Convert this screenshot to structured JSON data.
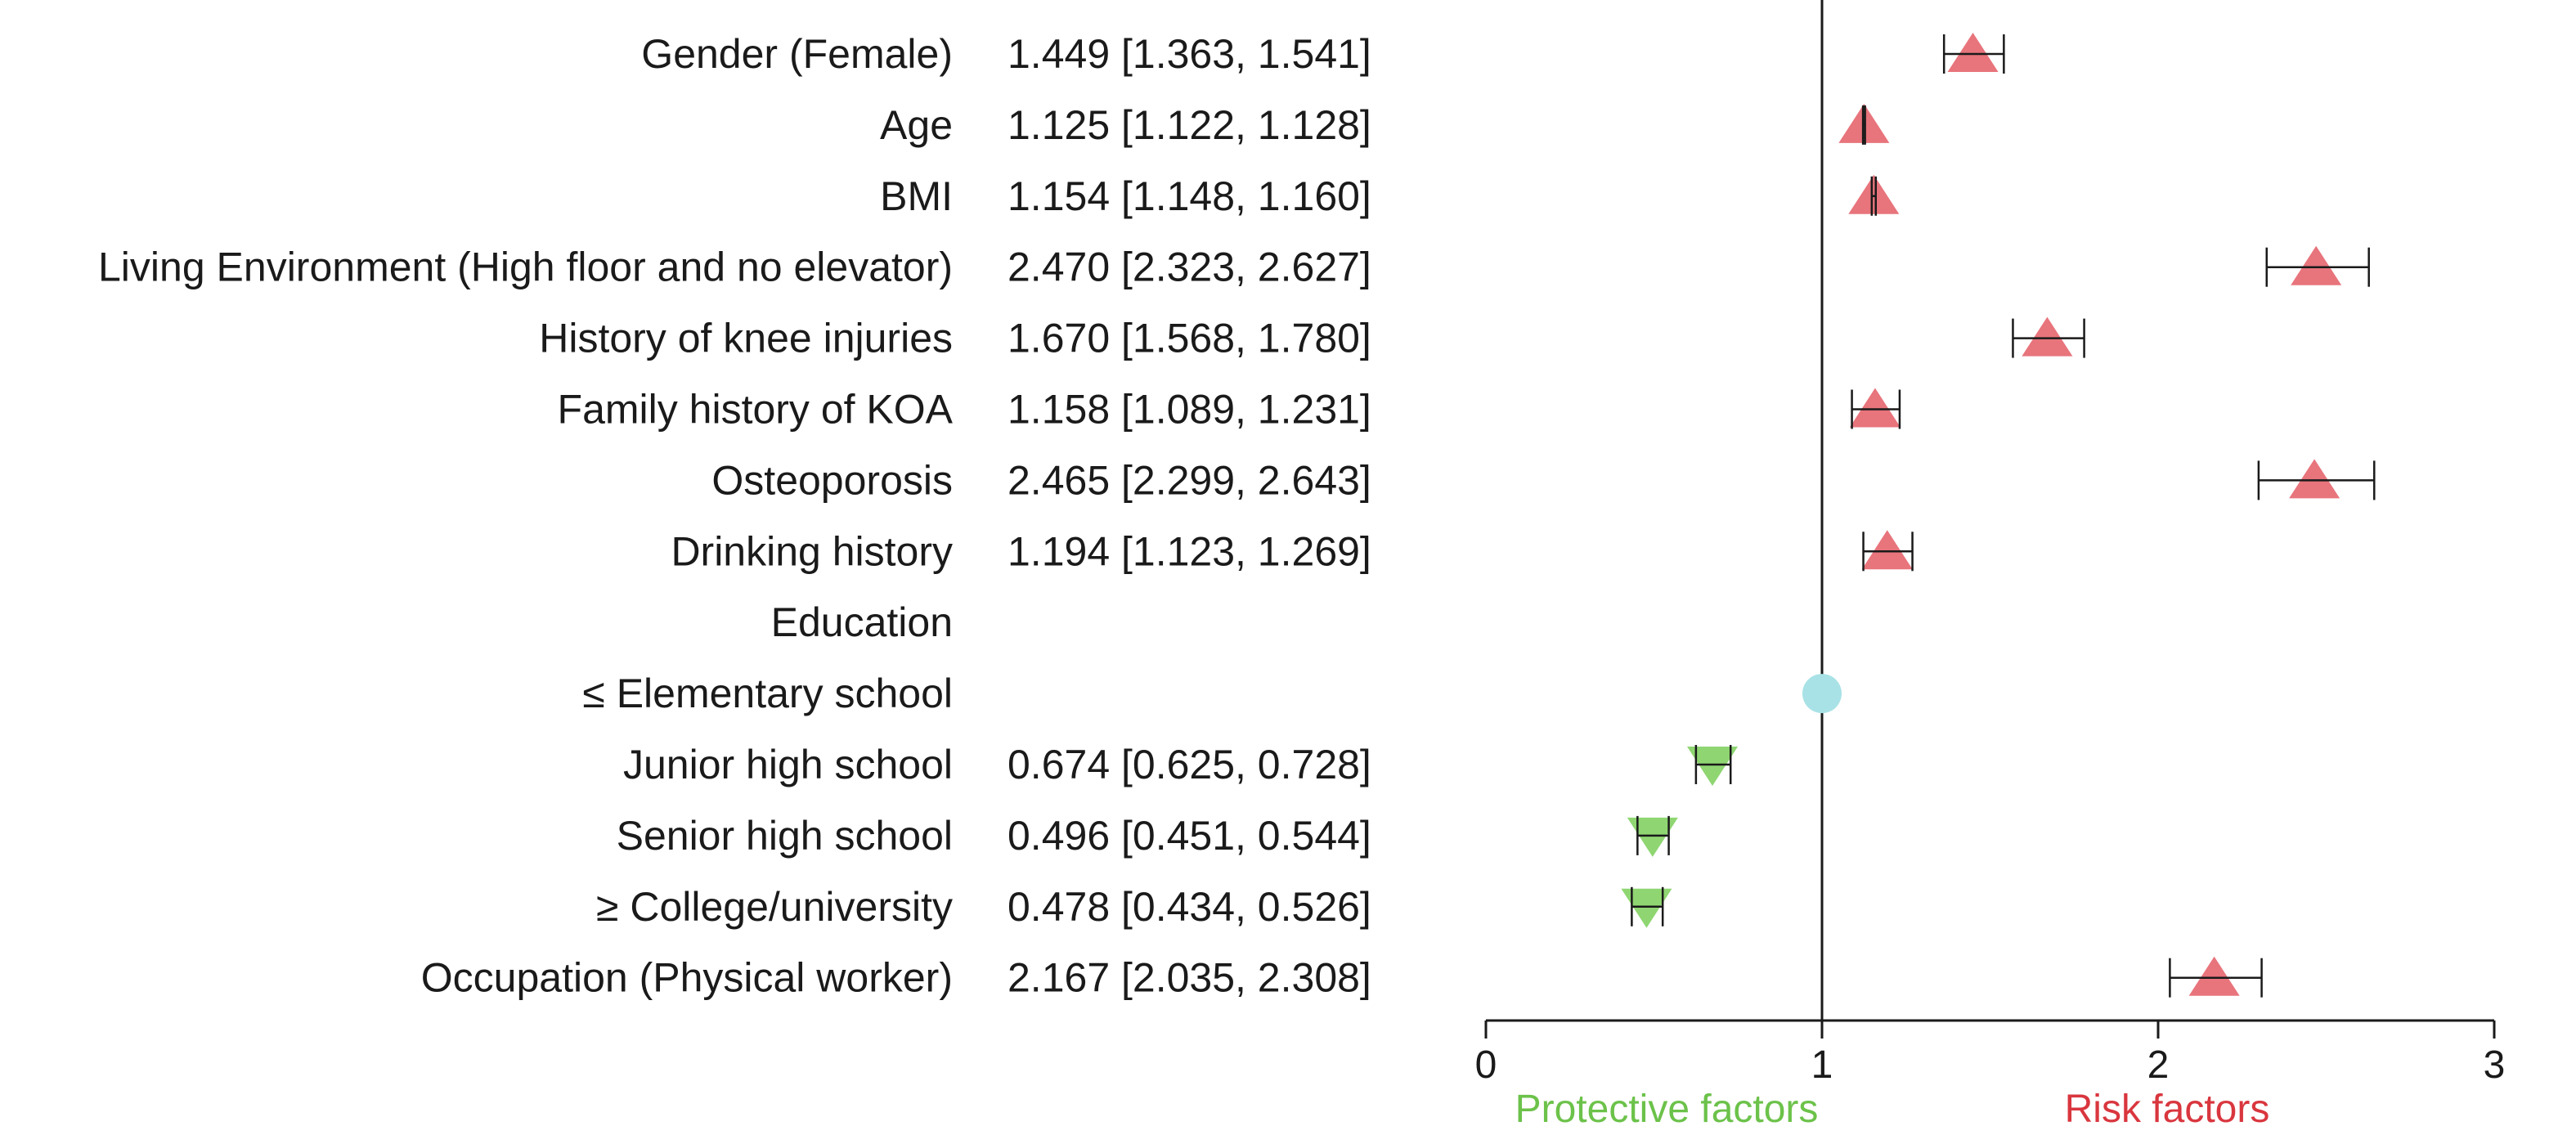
{
  "chart_data": {
    "type": "forest",
    "rows": [
      {
        "label": "Gender  (Female)",
        "value_text": "1.449 [1.363, 1.541]",
        "or": 1.449,
        "lo": 1.363,
        "hi": 1.541,
        "marker": "risk"
      },
      {
        "label": "Age",
        "value_text": "1.125 [1.122, 1.128]",
        "or": 1.125,
        "lo": 1.122,
        "hi": 1.128,
        "marker": "risk"
      },
      {
        "label": "BMI",
        "value_text": "1.154 [1.148, 1.160]",
        "or": 1.154,
        "lo": 1.148,
        "hi": 1.16,
        "marker": "risk"
      },
      {
        "label": "Living Environment (High floor and no elevator)",
        "value_text": "2.470 [2.323, 2.627]",
        "or": 2.47,
        "lo": 2.323,
        "hi": 2.627,
        "marker": "risk"
      },
      {
        "label": "History of knee injuries",
        "value_text": "1.670 [1.568, 1.780]",
        "or": 1.67,
        "lo": 1.568,
        "hi": 1.78,
        "marker": "risk"
      },
      {
        "label": "Family history of KOA",
        "value_text": "1.158 [1.089, 1.231]",
        "or": 1.158,
        "lo": 1.089,
        "hi": 1.231,
        "marker": "risk"
      },
      {
        "label": "Osteoporosis",
        "value_text": "2.465 [2.299, 2.643]",
        "or": 2.465,
        "lo": 2.299,
        "hi": 2.643,
        "marker": "risk"
      },
      {
        "label": "Drinking history",
        "value_text": "1.194 [1.123, 1.269]",
        "or": 1.194,
        "lo": 1.123,
        "hi": 1.269,
        "marker": "risk"
      },
      {
        "label": "Education",
        "value_text": "",
        "or": null,
        "lo": null,
        "hi": null,
        "marker": "none"
      },
      {
        "label": "≤ Elementary school",
        "value_text": "",
        "or": 1.0,
        "lo": null,
        "hi": null,
        "marker": "reference"
      },
      {
        "label": "Junior high school",
        "value_text": "0.674 [0.625, 0.728]",
        "or": 0.674,
        "lo": 0.625,
        "hi": 0.728,
        "marker": "protective"
      },
      {
        "label": "Senior high school",
        "value_text": "0.496 [0.451, 0.544]",
        "or": 0.496,
        "lo": 0.451,
        "hi": 0.544,
        "marker": "protective"
      },
      {
        "label": "≥ College/university",
        "value_text": "0.478 [0.434, 0.526]",
        "or": 0.478,
        "lo": 0.434,
        "hi": 0.526,
        "marker": "protective"
      },
      {
        "label": "Occupation  (Physical worker)",
        "value_text": "2.167 [2.035, 2.308]",
        "or": 2.167,
        "lo": 2.035,
        "hi": 2.308,
        "marker": "risk"
      }
    ],
    "xlim": [
      0,
      3
    ],
    "xticks": [
      "0",
      "1",
      "2",
      "3"
    ],
    "reference_line": 1,
    "xlabel_left": "Protective factors",
    "xlabel_right": "Risk factors",
    "colors": {
      "risk": "#e8747c",
      "protective": "#8fd672",
      "reference": "#a8e2e6",
      "protective_text": "#6cc24a",
      "risk_text": "#d9363e",
      "line": "#1a1a1a"
    }
  }
}
